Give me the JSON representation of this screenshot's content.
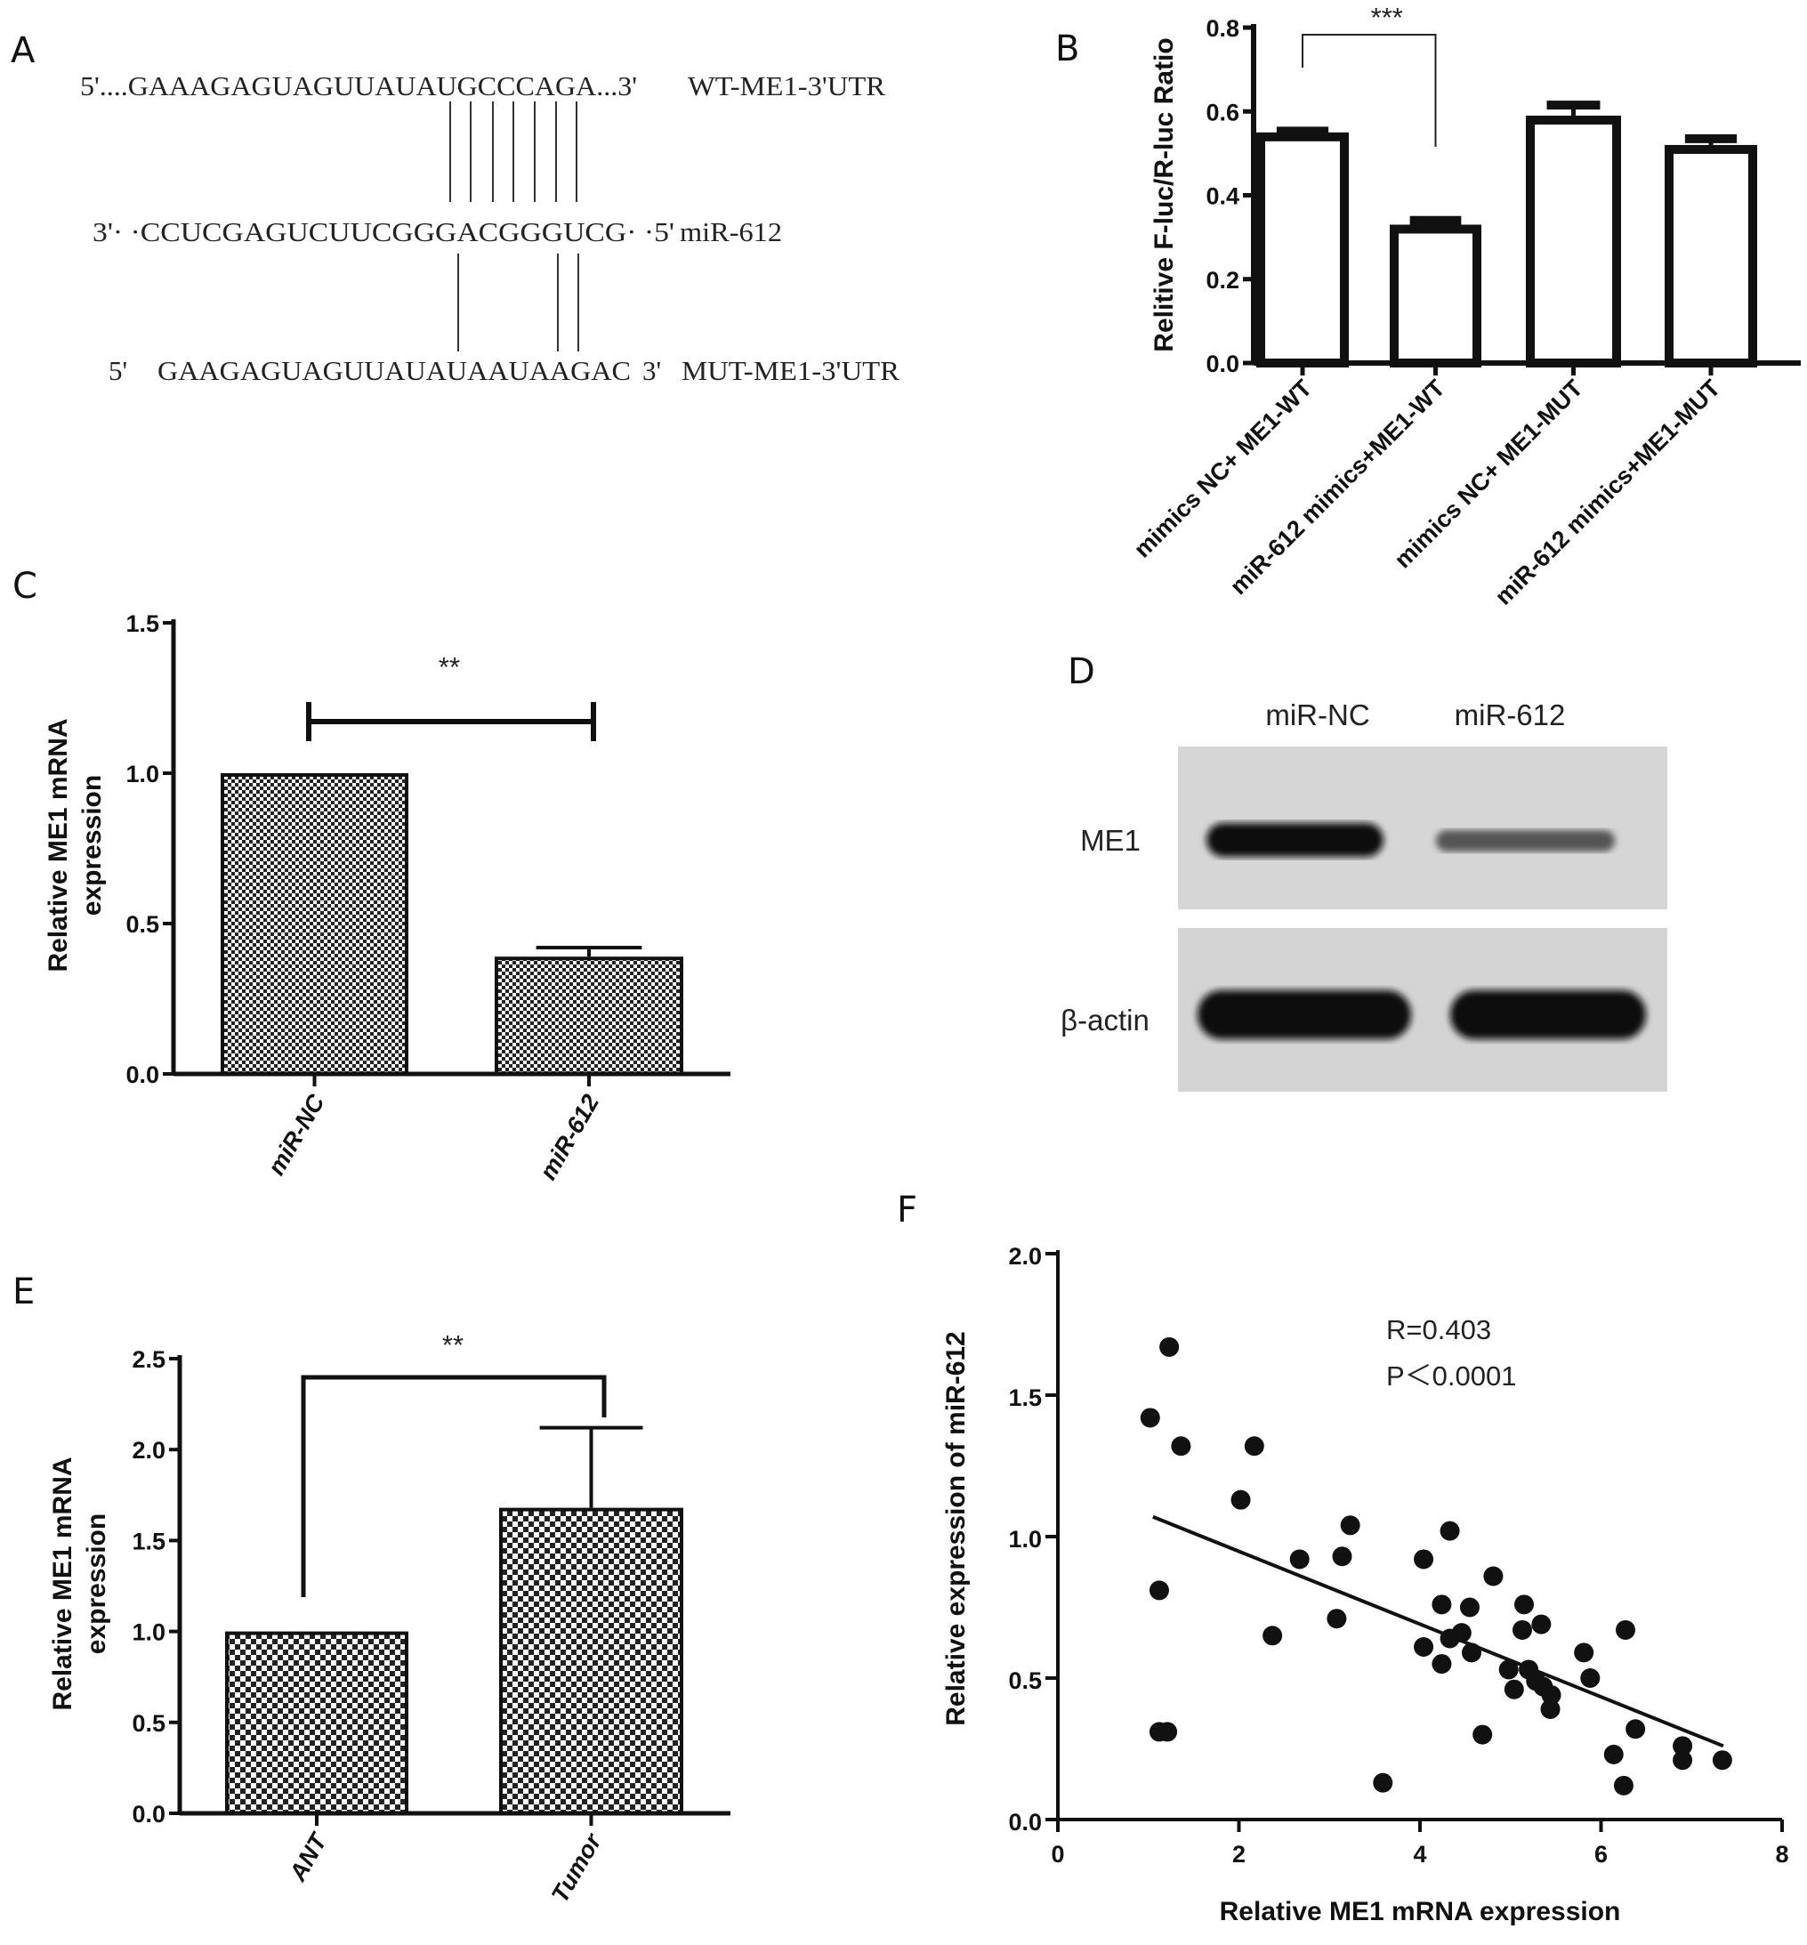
{
  "panel_labels": {
    "a": "A",
    "b": "B",
    "c": "C",
    "d": "D",
    "e": "E",
    "f": "F"
  },
  "panel_a": {
    "wt": {
      "seq": "5'....GAAAGAGUAGUUAUAUGCCCAGA...3'",
      "label": "WT-ME1-3'UTR"
    },
    "mir": {
      "seq": "3'· ·CCUCGAGUCUUCGGGACGGGUCG· ·5'",
      "label": "miR-612"
    },
    "mut": {
      "five": "5'",
      "seq": "GAAGAGUAGUUAUAUAAUAAGAC",
      "three": "3'",
      "label": "MUT-ME1-3'UTR"
    }
  },
  "panel_d": {
    "lanes": [
      "miR-NC",
      "miR-612"
    ],
    "rows": [
      "ME1",
      "β-actin"
    ],
    "band_intensity": {
      "ME1": [
        1.0,
        0.35
      ],
      "β-actin": [
        1.0,
        1.0
      ]
    }
  },
  "chart_data": [
    {
      "id": "B",
      "type": "bar",
      "categories": [
        "mimics NC+ ME1-WT",
        "miR-612 mimics+ME1-WT",
        "mimics NC+ ME1-MUT",
        "miR-612 mimics+ME1-MUT"
      ],
      "values": [
        0.55,
        0.33,
        0.59,
        0.52
      ],
      "errors": [
        0.003,
        0.01,
        0.025,
        0.015
      ],
      "ylabel": "Relitive F-luc/R-luc Ratio",
      "xlabel": "",
      "ylim": [
        0,
        0.8
      ],
      "yticks": [
        "0.0",
        "0.2",
        "0.4",
        "0.6",
        "0.8"
      ],
      "significance": {
        "between": [
          0,
          1
        ],
        "label": "***"
      },
      "fill": "#ffffff"
    },
    {
      "id": "C",
      "type": "bar",
      "categories": [
        "miR-NC",
        "miR-612"
      ],
      "values": [
        1.0,
        0.39
      ],
      "errors": [
        0.0,
        0.03
      ],
      "ylabel": [
        "Relative ME1 mRNA",
        "expression"
      ],
      "ylim": [
        0,
        1.5
      ],
      "yticks": [
        "0.0",
        "0.5",
        "1.0",
        "1.5"
      ],
      "significance": {
        "between": [
          0,
          1
        ],
        "label": "**"
      },
      "fill": "checkered"
    },
    {
      "id": "E",
      "type": "bar",
      "categories": [
        "ANT",
        "Tumor"
      ],
      "values": [
        1.0,
        1.68
      ],
      "errors": [
        0.0,
        0.44
      ],
      "ylabel": [
        "Relative ME1 mRNA",
        "expression"
      ],
      "ylim": [
        0,
        2.5
      ],
      "yticks": [
        "0.0",
        "0.5",
        "1.0",
        "1.5",
        "2.0",
        "2.5"
      ],
      "significance": {
        "between": [
          0,
          1
        ],
        "label": "**"
      },
      "fill": "checkered"
    },
    {
      "id": "F",
      "type": "scatter",
      "xlabel": "Relative ME1 mRNA expression",
      "ylabel": "Relative expression of miR-612",
      "xlim": [
        0,
        8
      ],
      "ylim": [
        0,
        2.0
      ],
      "xticks": [
        "0",
        "2",
        "4",
        "6",
        "8"
      ],
      "yticks": [
        "0.0",
        "0.5",
        "1.0",
        "1.5",
        "2.0"
      ],
      "annotations": [
        "R=0.403",
        "P＜0.0001"
      ],
      "fit_line": [
        [
          1.05,
          1.07
        ],
        [
          7.35,
          0.26
        ]
      ],
      "points": [
        [
          1.23,
          1.67
        ],
        [
          1.02,
          1.42
        ],
        [
          1.36,
          1.32
        ],
        [
          2.17,
          1.32
        ],
        [
          2.02,
          1.13
        ],
        [
          3.23,
          1.04
        ],
        [
          4.33,
          1.02
        ],
        [
          2.67,
          0.92
        ],
        [
          3.14,
          0.93
        ],
        [
          4.04,
          0.92
        ],
        [
          4.81,
          0.86
        ],
        [
          1.12,
          0.81
        ],
        [
          4.24,
          0.76
        ],
        [
          4.55,
          0.75
        ],
        [
          5.15,
          0.76
        ],
        [
          3.08,
          0.71
        ],
        [
          5.34,
          0.69
        ],
        [
          5.13,
          0.67
        ],
        [
          6.27,
          0.67
        ],
        [
          2.37,
          0.65
        ],
        [
          4.46,
          0.66
        ],
        [
          4.33,
          0.64
        ],
        [
          4.04,
          0.61
        ],
        [
          4.57,
          0.59
        ],
        [
          5.81,
          0.59
        ],
        [
          4.24,
          0.55
        ],
        [
          4.98,
          0.53
        ],
        [
          5.2,
          0.53
        ],
        [
          5.88,
          0.5
        ],
        [
          5.28,
          0.49
        ],
        [
          5.04,
          0.46
        ],
        [
          5.36,
          0.47
        ],
        [
          5.45,
          0.44
        ],
        [
          5.44,
          0.39
        ],
        [
          6.38,
          0.32
        ],
        [
          1.12,
          0.31
        ],
        [
          1.21,
          0.31
        ],
        [
          4.69,
          0.3
        ],
        [
          6.9,
          0.26
        ],
        [
          6.9,
          0.21
        ],
        [
          6.14,
          0.23
        ],
        [
          7.34,
          0.21
        ],
        [
          3.59,
          0.13
        ],
        [
          6.25,
          0.12
        ]
      ]
    }
  ]
}
